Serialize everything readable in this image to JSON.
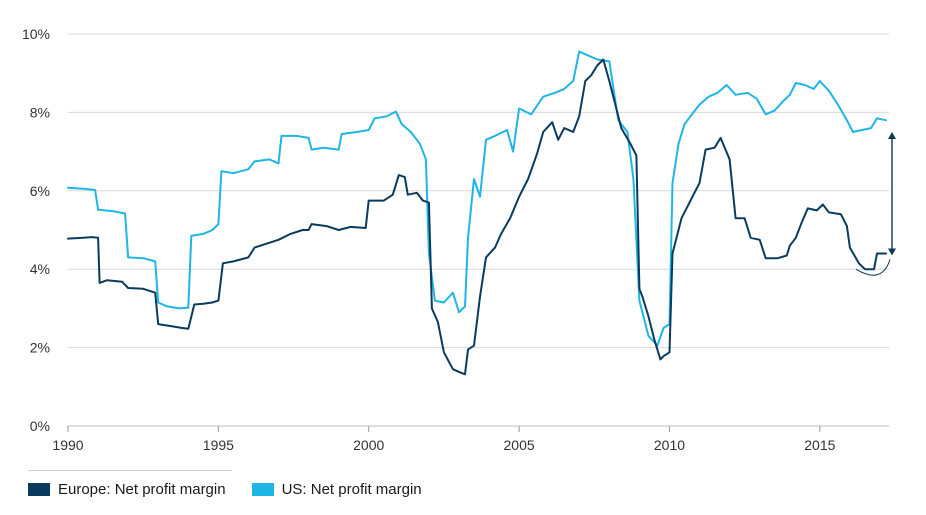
{
  "chart_data": {
    "type": "line",
    "title": "",
    "xlabel": "",
    "ylabel": "",
    "xlim": [
      1990,
      2017.3
    ],
    "ylim": [
      0,
      10
    ],
    "y_unit": "%",
    "grid": true,
    "legend_placement": "bottom-left",
    "x_ticks": [
      {
        "value": 1990,
        "label": "1990"
      },
      {
        "value": 1995,
        "label": "1995"
      },
      {
        "value": 2000,
        "label": "2000"
      },
      {
        "value": 2005,
        "label": "2005"
      },
      {
        "value": 2010,
        "label": "2010"
      },
      {
        "value": 2015,
        "label": "2015"
      }
    ],
    "y_ticks": [
      {
        "value": 0,
        "label": "0%"
      },
      {
        "value": 2,
        "label": "2%"
      },
      {
        "value": 4,
        "label": "4%"
      },
      {
        "value": 6,
        "label": "6%"
      },
      {
        "value": 8,
        "label": "8%"
      },
      {
        "value": 10,
        "label": "10%"
      }
    ],
    "series": [
      {
        "name": "Europe: Net profit margin",
        "color": "#0b3b5c",
        "points": [
          [
            1990.0,
            4.78
          ],
          [
            1990.5,
            4.8
          ],
          [
            1990.8,
            4.82
          ],
          [
            1991.0,
            4.8
          ],
          [
            1991.05,
            3.65
          ],
          [
            1991.3,
            3.72
          ],
          [
            1991.8,
            3.68
          ],
          [
            1992.0,
            3.52
          ],
          [
            1992.5,
            3.5
          ],
          [
            1992.9,
            3.4
          ],
          [
            1993.0,
            2.6
          ],
          [
            1993.4,
            2.55
          ],
          [
            1993.8,
            2.5
          ],
          [
            1994.0,
            2.48
          ],
          [
            1994.2,
            3.1
          ],
          [
            1994.5,
            3.12
          ],
          [
            1994.8,
            3.15
          ],
          [
            1995.0,
            3.2
          ],
          [
            1995.15,
            4.15
          ],
          [
            1995.5,
            4.2
          ],
          [
            1996.0,
            4.3
          ],
          [
            1996.2,
            4.55
          ],
          [
            1996.6,
            4.65
          ],
          [
            1997.0,
            4.75
          ],
          [
            1997.4,
            4.9
          ],
          [
            1997.8,
            5.0
          ],
          [
            1998.0,
            5.0
          ],
          [
            1998.1,
            5.15
          ],
          [
            1998.6,
            5.1
          ],
          [
            1999.0,
            5.0
          ],
          [
            1999.4,
            5.08
          ],
          [
            1999.9,
            5.05
          ],
          [
            2000.0,
            5.75
          ],
          [
            2000.5,
            5.75
          ],
          [
            2000.8,
            5.9
          ],
          [
            2001.0,
            6.4
          ],
          [
            2001.2,
            6.35
          ],
          [
            2001.3,
            5.9
          ],
          [
            2001.6,
            5.95
          ],
          [
            2001.8,
            5.75
          ],
          [
            2002.0,
            5.7
          ],
          [
            2002.1,
            3.0
          ],
          [
            2002.3,
            2.65
          ],
          [
            2002.5,
            1.88
          ],
          [
            2002.8,
            1.45
          ],
          [
            2003.0,
            1.38
          ],
          [
            2003.2,
            1.32
          ],
          [
            2003.3,
            1.95
          ],
          [
            2003.5,
            2.05
          ],
          [
            2003.7,
            3.3
          ],
          [
            2003.9,
            4.3
          ],
          [
            2004.2,
            4.55
          ],
          [
            2004.4,
            4.9
          ],
          [
            2004.7,
            5.3
          ],
          [
            2005.0,
            5.85
          ],
          [
            2005.3,
            6.3
          ],
          [
            2005.6,
            6.95
          ],
          [
            2005.8,
            7.5
          ],
          [
            2006.1,
            7.75
          ],
          [
            2006.3,
            7.3
          ],
          [
            2006.5,
            7.6
          ],
          [
            2006.8,
            7.5
          ],
          [
            2007.0,
            7.9
          ],
          [
            2007.2,
            8.8
          ],
          [
            2007.4,
            8.95
          ],
          [
            2007.6,
            9.2
          ],
          [
            2007.8,
            9.35
          ],
          [
            2008.0,
            8.8
          ],
          [
            2008.2,
            8.2
          ],
          [
            2008.4,
            7.6
          ],
          [
            2008.7,
            7.2
          ],
          [
            2008.9,
            6.9
          ],
          [
            2009.0,
            3.5
          ],
          [
            2009.1,
            3.3
          ],
          [
            2009.3,
            2.8
          ],
          [
            2009.5,
            2.2
          ],
          [
            2009.7,
            1.7
          ],
          [
            2009.8,
            1.78
          ],
          [
            2010.0,
            1.88
          ],
          [
            2010.1,
            4.4
          ],
          [
            2010.4,
            5.3
          ],
          [
            2010.6,
            5.6
          ],
          [
            2010.8,
            5.9
          ],
          [
            2011.0,
            6.2
          ],
          [
            2011.2,
            7.05
          ],
          [
            2011.5,
            7.1
          ],
          [
            2011.7,
            7.35
          ],
          [
            2012.0,
            6.8
          ],
          [
            2012.2,
            5.3
          ],
          [
            2012.5,
            5.3
          ],
          [
            2012.7,
            4.8
          ],
          [
            2013.0,
            4.75
          ],
          [
            2013.2,
            4.28
          ],
          [
            2013.6,
            4.28
          ],
          [
            2013.9,
            4.35
          ],
          [
            2014.0,
            4.6
          ],
          [
            2014.2,
            4.8
          ],
          [
            2014.4,
            5.2
          ],
          [
            2014.6,
            5.55
          ],
          [
            2014.9,
            5.5
          ],
          [
            2015.1,
            5.65
          ],
          [
            2015.3,
            5.45
          ],
          [
            2015.7,
            5.4
          ],
          [
            2015.9,
            5.1
          ],
          [
            2016.0,
            4.55
          ],
          [
            2016.3,
            4.15
          ],
          [
            2016.5,
            4.0
          ],
          [
            2016.8,
            4.0
          ],
          [
            2016.9,
            4.4
          ],
          [
            2017.2,
            4.4
          ]
        ]
      },
      {
        "name": "US: Net profit margin",
        "color": "#1fb5e6",
        "points": [
          [
            1990.0,
            6.08
          ],
          [
            1990.5,
            6.05
          ],
          [
            1990.9,
            6.02
          ],
          [
            1991.0,
            5.52
          ],
          [
            1991.5,
            5.48
          ],
          [
            1991.9,
            5.42
          ],
          [
            1992.0,
            4.3
          ],
          [
            1992.5,
            4.28
          ],
          [
            1992.9,
            4.2
          ],
          [
            1993.0,
            3.15
          ],
          [
            1993.3,
            3.05
          ],
          [
            1993.7,
            3.0
          ],
          [
            1994.0,
            3.02
          ],
          [
            1994.1,
            4.85
          ],
          [
            1994.5,
            4.9
          ],
          [
            1994.8,
            5.0
          ],
          [
            1995.0,
            5.15
          ],
          [
            1995.1,
            6.5
          ],
          [
            1995.5,
            6.45
          ],
          [
            1996.0,
            6.55
          ],
          [
            1996.2,
            6.75
          ],
          [
            1996.7,
            6.8
          ],
          [
            1997.0,
            6.7
          ],
          [
            1997.1,
            7.4
          ],
          [
            1997.6,
            7.4
          ],
          [
            1998.0,
            7.35
          ],
          [
            1998.1,
            7.05
          ],
          [
            1998.5,
            7.1
          ],
          [
            1999.0,
            7.05
          ],
          [
            1999.1,
            7.45
          ],
          [
            1999.6,
            7.5
          ],
          [
            2000.0,
            7.55
          ],
          [
            2000.2,
            7.85
          ],
          [
            2000.6,
            7.9
          ],
          [
            2000.9,
            8.02
          ],
          [
            2001.1,
            7.7
          ],
          [
            2001.4,
            7.5
          ],
          [
            2001.7,
            7.2
          ],
          [
            2001.9,
            6.8
          ],
          [
            2002.0,
            4.4
          ],
          [
            2002.2,
            3.2
          ],
          [
            2002.5,
            3.15
          ],
          [
            2002.8,
            3.4
          ],
          [
            2003.0,
            2.9
          ],
          [
            2003.2,
            3.05
          ],
          [
            2003.3,
            4.8
          ],
          [
            2003.5,
            6.3
          ],
          [
            2003.7,
            5.85
          ],
          [
            2003.9,
            7.3
          ],
          [
            2004.2,
            7.4
          ],
          [
            2004.6,
            7.55
          ],
          [
            2004.8,
            7.0
          ],
          [
            2005.0,
            8.1
          ],
          [
            2005.4,
            7.95
          ],
          [
            2005.8,
            8.4
          ],
          [
            2006.2,
            8.5
          ],
          [
            2006.5,
            8.6
          ],
          [
            2006.8,
            8.8
          ],
          [
            2007.0,
            9.55
          ],
          [
            2007.3,
            9.45
          ],
          [
            2007.6,
            9.35
          ],
          [
            2008.0,
            9.3
          ],
          [
            2008.3,
            7.8
          ],
          [
            2008.6,
            7.5
          ],
          [
            2008.8,
            6.3
          ],
          [
            2009.0,
            3.2
          ],
          [
            2009.3,
            2.3
          ],
          [
            2009.6,
            2.05
          ],
          [
            2009.8,
            2.5
          ],
          [
            2010.0,
            2.6
          ],
          [
            2010.1,
            6.2
          ],
          [
            2010.3,
            7.2
          ],
          [
            2010.5,
            7.7
          ],
          [
            2010.8,
            8.0
          ],
          [
            2011.0,
            8.2
          ],
          [
            2011.3,
            8.4
          ],
          [
            2011.6,
            8.5
          ],
          [
            2011.9,
            8.7
          ],
          [
            2012.2,
            8.45
          ],
          [
            2012.6,
            8.5
          ],
          [
            2012.9,
            8.35
          ],
          [
            2013.2,
            7.95
          ],
          [
            2013.5,
            8.05
          ],
          [
            2013.8,
            8.3
          ],
          [
            2014.0,
            8.45
          ],
          [
            2014.2,
            8.75
          ],
          [
            2014.5,
            8.7
          ],
          [
            2014.8,
            8.6
          ],
          [
            2015.0,
            8.8
          ],
          [
            2015.3,
            8.55
          ],
          [
            2015.6,
            8.2
          ],
          [
            2015.9,
            7.8
          ],
          [
            2016.1,
            7.5
          ],
          [
            2016.4,
            7.55
          ],
          [
            2016.7,
            7.6
          ],
          [
            2016.9,
            7.85
          ],
          [
            2017.2,
            7.8
          ]
        ]
      }
    ],
    "annotation": {
      "type": "double-arrow",
      "x": 2017.4,
      "y_from": 4.35,
      "y_to": 7.5,
      "color": "#0b3b5c"
    }
  }
}
